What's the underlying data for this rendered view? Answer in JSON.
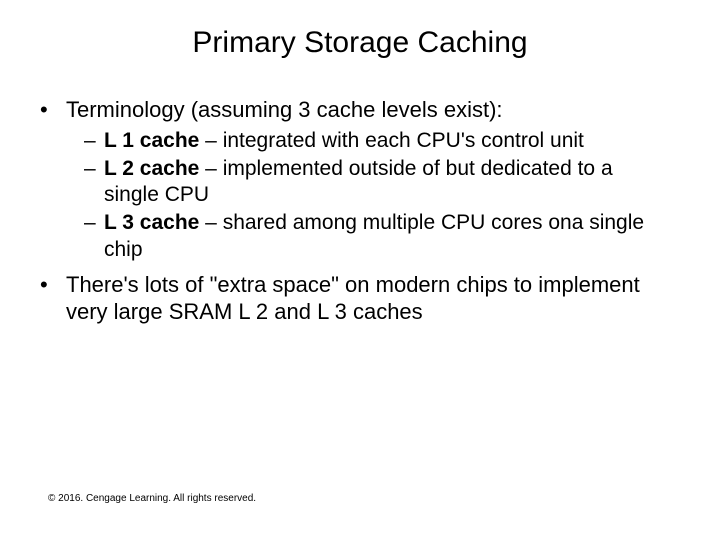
{
  "title": "Primary Storage Caching",
  "bullets": {
    "b1": "Terminology (assuming 3 cache levels exist):",
    "sub1_bold": "L 1 cache",
    "sub1_rest": " – integrated with each CPU's control unit",
    "sub2_bold": "L 2 cache",
    "sub2_rest": " – implemented outside of but dedicated to a single CPU",
    "sub3_bold": "L 3 cache",
    "sub3_rest": " – shared among multiple CPU cores ona  single chip",
    "b2": "There's lots of \"extra space\" on modern chips to implement very large SRAM L 2 and L 3 caches"
  },
  "copyright": "© 2016. Cengage Learning. All rights reserved.",
  "colors": {
    "background": "#ffffff",
    "text": "#000000"
  },
  "typography": {
    "title_fontsize": 30,
    "body_fontsize": 22,
    "sub_fontsize": 21,
    "copyright_fontsize": 10,
    "font_family": "Arial"
  }
}
